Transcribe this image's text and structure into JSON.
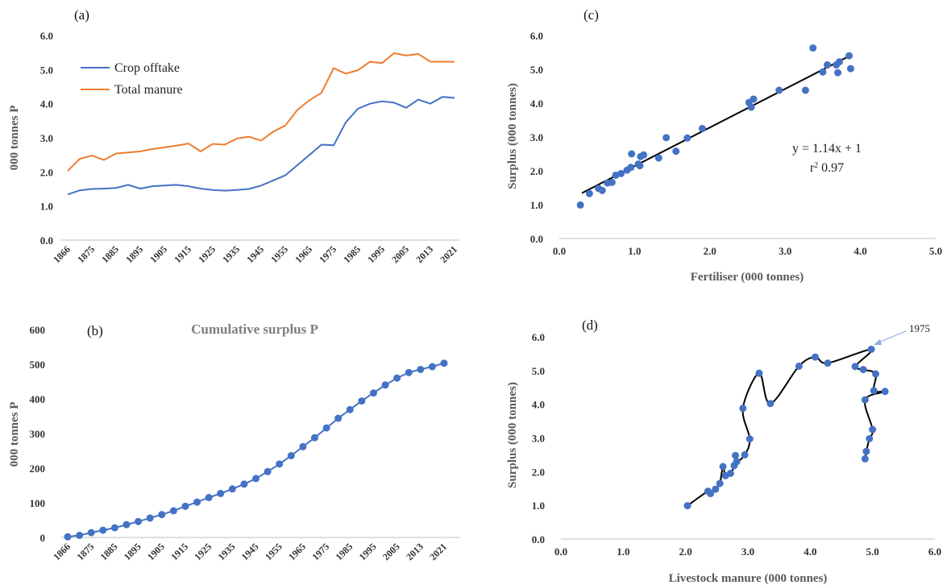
{
  "chart_data": [
    {
      "panel_label": "(a)",
      "type": "line",
      "title": "",
      "ylabel": "000 tonnes P",
      "xlabel": "",
      "ylim": [
        0,
        6
      ],
      "yticks": [
        "0.0",
        "1.0",
        "2.0",
        "3.0",
        "4.0",
        "5.0",
        "6.0"
      ],
      "x_tick_labels": [
        "1866",
        "1875",
        "1885",
        "1895",
        "1905",
        "1915",
        "1925",
        "1935",
        "1945",
        "1955",
        "1965",
        "1975",
        "1985",
        "1995",
        "2005",
        "2013",
        "2021"
      ],
      "legend_position": "top-left",
      "series": [
        {
          "name": "Crop offtake",
          "color": "#4472C4",
          "values": [
            1.34,
            1.46,
            1.5,
            1.51,
            1.53,
            1.62,
            1.51,
            1.58,
            1.6,
            1.62,
            1.58,
            1.51,
            1.47,
            1.45,
            1.47,
            1.5,
            1.6,
            1.75,
            1.9,
            2.2,
            2.5,
            2.8,
            2.78,
            3.45,
            3.85,
            4.0,
            4.07,
            4.03,
            3.88,
            4.12,
            4.0,
            4.2,
            4.17
          ]
        },
        {
          "name": "Total manure",
          "color": "#ED7D31",
          "values": [
            2.03,
            2.38,
            2.48,
            2.35,
            2.54,
            2.57,
            2.6,
            2.67,
            2.72,
            2.77,
            2.83,
            2.6,
            2.82,
            2.8,
            2.98,
            3.03,
            2.92,
            3.18,
            3.36,
            3.82,
            4.1,
            4.32,
            5.04,
            4.88,
            4.98,
            5.23,
            5.19,
            5.48,
            5.41,
            5.46,
            5.23,
            5.23,
            5.23
          ]
        }
      ]
    },
    {
      "panel_label": "(b)",
      "type": "line",
      "title": "Cumulative surplus P",
      "ylabel": "000 tonnes P",
      "xlabel": "",
      "ylim": [
        0,
        600
      ],
      "yticks": [
        "0",
        "100",
        "200",
        "300",
        "400",
        "500",
        "600"
      ],
      "x_tick_labels": [
        "1866",
        "1875",
        "1885",
        "1895",
        "1905",
        "1915",
        "1925",
        "1935",
        "1945",
        "1955",
        "1965",
        "1975",
        "1985",
        "1995",
        "2005",
        "2013",
        "2021"
      ],
      "series": [
        {
          "name": "",
          "color": "#4472C4",
          "values": [
            2,
            6,
            14,
            21,
            28,
            37,
            46,
            56,
            66,
            77,
            90,
            102,
            115,
            127,
            140,
            154,
            170,
            190,
            212,
            236,
            262,
            288,
            316,
            344,
            369,
            394,
            417,
            440,
            460,
            476,
            485,
            493,
            503
          ]
        }
      ]
    },
    {
      "panel_label": "(c)",
      "type": "scatter",
      "title": "",
      "xlabel": "Fertiliser (000 tonnes)",
      "ylabel": "Surplus (000 tonnes)",
      "xlim": [
        0,
        5
      ],
      "ylim": [
        0,
        6
      ],
      "xticks": [
        "0.0",
        "1.0",
        "2.0",
        "3.0",
        "4.0",
        "5.0"
      ],
      "yticks": [
        "0.0",
        "1.0",
        "2.0",
        "3.0",
        "4.0",
        "5.0",
        "6.0"
      ],
      "point_color": "#4472C4",
      "trendline": {
        "slope": 1.14,
        "intercept": 1.0,
        "x_range": [
          0.3,
          3.85
        ]
      },
      "annotation": {
        "equation": "y = 1.14x + 1",
        "r2_prefix": "r",
        "r2_sup": "2",
        "r2_value": " 0.97"
      },
      "points": [
        [
          0.28,
          0.99
        ],
        [
          0.4,
          1.33
        ],
        [
          0.52,
          1.48
        ],
        [
          0.57,
          1.42
        ],
        [
          0.64,
          1.64
        ],
        [
          0.7,
          1.66
        ],
        [
          0.75,
          1.87
        ],
        [
          0.82,
          1.92
        ],
        [
          0.9,
          2.02
        ],
        [
          0.95,
          2.1
        ],
        [
          0.96,
          2.5
        ],
        [
          1.05,
          2.2
        ],
        [
          1.07,
          2.15
        ],
        [
          1.08,
          2.42
        ],
        [
          1.12,
          2.47
        ],
        [
          1.32,
          2.38
        ],
        [
          1.42,
          2.98
        ],
        [
          1.55,
          2.58
        ],
        [
          1.7,
          2.97
        ],
        [
          1.9,
          3.25
        ],
        [
          2.52,
          4.02
        ],
        [
          2.55,
          3.88
        ],
        [
          2.58,
          4.12
        ],
        [
          2.92,
          4.38
        ],
        [
          3.27,
          4.38
        ],
        [
          3.37,
          5.63
        ],
        [
          3.5,
          4.92
        ],
        [
          3.56,
          5.13
        ],
        [
          3.68,
          5.13
        ],
        [
          3.7,
          4.9
        ],
        [
          3.72,
          5.22
        ],
        [
          3.85,
          5.4
        ],
        [
          3.87,
          5.02
        ]
      ]
    },
    {
      "panel_label": "(d)",
      "type": "line",
      "title": "",
      "xlabel": "Livestock manure (000 tonnes)",
      "ylabel": "Surplus (000 tonnes)",
      "xlim": [
        0,
        6
      ],
      "ylim": [
        0,
        6
      ],
      "xticks": [
        "0.0",
        "1.0",
        "2.0",
        "3.0",
        "4.0",
        "5.0",
        "6.0"
      ],
      "yticks": [
        "0.0",
        "1.0",
        "2.0",
        "3.0",
        "4.0",
        "5.0",
        "6.0"
      ],
      "point_color": "#4472C4",
      "callout": {
        "label": "1975",
        "x": 4.98,
        "y": 5.63
      },
      "points": [
        [
          2.03,
          0.99
        ],
        [
          2.36,
          1.42
        ],
        [
          2.4,
          1.35
        ],
        [
          2.48,
          1.48
        ],
        [
          2.55,
          1.65
        ],
        [
          2.6,
          2.15
        ],
        [
          2.64,
          1.88
        ],
        [
          2.72,
          1.95
        ],
        [
          2.78,
          2.18
        ],
        [
          2.8,
          2.48
        ],
        [
          2.82,
          2.3
        ],
        [
          2.95,
          2.5
        ],
        [
          3.03,
          2.97
        ],
        [
          2.92,
          3.88
        ],
        [
          3.18,
          4.92
        ],
        [
          3.36,
          4.02
        ],
        [
          3.82,
          5.13
        ],
        [
          4.08,
          5.4
        ],
        [
          4.28,
          5.22
        ],
        [
          4.98,
          5.63
        ],
        [
          4.72,
          5.12
        ],
        [
          4.85,
          5.03
        ],
        [
          5.05,
          4.9
        ],
        [
          5.02,
          4.4
        ],
        [
          5.2,
          4.38
        ],
        [
          4.88,
          4.13
        ],
        [
          5.0,
          3.25
        ],
        [
          4.95,
          2.98
        ],
        [
          4.9,
          2.6
        ],
        [
          4.88,
          2.38
        ]
      ]
    }
  ]
}
